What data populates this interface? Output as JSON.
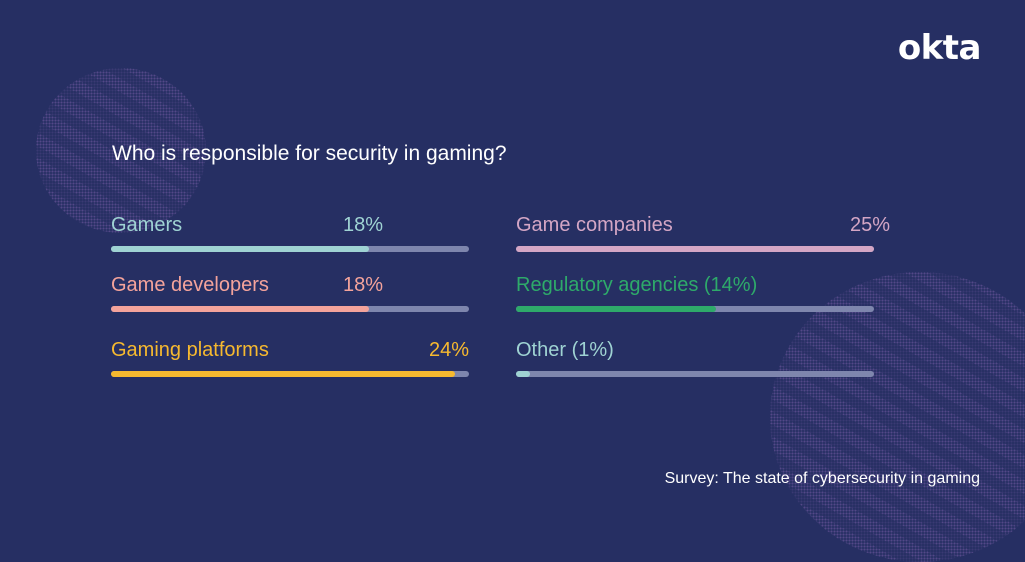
{
  "brand": {
    "logo_text": "okta"
  },
  "title": "Who is responsible for security in gaming?",
  "footer": "Survey: The state of cybersecurity in gaming",
  "colors": {
    "background": "#262f63",
    "track": "#7e86ad",
    "gamers": "#9fd3d3",
    "game_developers": "#f4a39b",
    "gaming_platforms": "#f6b92f",
    "game_companies": "#d4a6c5",
    "regulatory_agencies": "#2eaa6a",
    "other": "#9fd3d3"
  },
  "chart_data": {
    "type": "bar",
    "orientation": "horizontal",
    "title": "Who is responsible for security in gaming?",
    "scale_max": 25,
    "unit": "%",
    "categories": [
      "Gamers",
      "Game developers",
      "Gaming platforms",
      "Game companies",
      "Regulatory agencies",
      "Other"
    ],
    "values": [
      18,
      18,
      24,
      25,
      14,
      1
    ],
    "items": [
      {
        "label": "Gamers",
        "value_label": "18%",
        "value": 18,
        "color": "#9fd3d3",
        "column": "left"
      },
      {
        "label": "Game developers",
        "value_label": "18%",
        "value": 18,
        "color": "#f4a39b",
        "column": "left"
      },
      {
        "label": "Gaming platforms",
        "value_label": "24%",
        "value": 24,
        "color": "#f6b92f",
        "column": "left"
      },
      {
        "label": "Game companies",
        "value_label": "25%",
        "value": 25,
        "color": "#d4a6c5",
        "column": "right"
      },
      {
        "label": "Regulatory agencies (14%)",
        "value_label": "",
        "value": 14,
        "color": "#2eaa6a",
        "column": "right"
      },
      {
        "label": "Other (1%)",
        "value_label": "",
        "value": 1,
        "color": "#9fd3d3",
        "column": "right"
      }
    ],
    "xlabel": "",
    "ylabel": "",
    "grid": false,
    "legend": "none"
  }
}
